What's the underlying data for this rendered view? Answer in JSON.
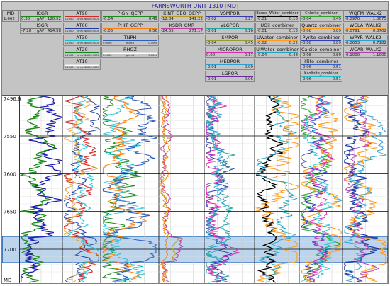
{
  "window": {
    "title": "FARNSWORTH UNIT 1310 [MD]"
  },
  "depth_track": {
    "label_top": "MD",
    "value_top": "1:662",
    "label_bottom": "MD",
    "ticks": [
      "7496.6",
      "7550",
      "7600",
      "7650",
      "7700"
    ]
  },
  "header_cells": [
    {
      "label": "HCGR",
      "color": "#1b8a1b",
      "min": "0.30",
      "unit": "gAPI",
      "max": "120.52"
    },
    {
      "label": "HSGR",
      "color": "#7a7a7a",
      "min": "-7.28",
      "unit": "gAPI",
      "max": "414.58"
    },
    {
      "label": "AT90",
      "color": "#d62728",
      "min": "0.2000",
      "unit": "ohm.m",
      "max": "2,000.0000"
    },
    {
      "label": "AT60",
      "color": "#1f3ea8",
      "min": "0.2000",
      "unit": "ohm.m",
      "max": "2,000.0000"
    },
    {
      "label": "AT30",
      "color": "#17becf",
      "min": "0.2000",
      "unit": "ohm.m",
      "max": "2,000.0000"
    },
    {
      "label": "AT20",
      "color": "#0b8a1f",
      "min": "0.2000",
      "unit": "ohm.m",
      "max": "2,000.0000"
    },
    {
      "label": "AT10",
      "color": "#ffffff",
      "min": "0.2000",
      "unit": "ohm.m",
      "max": "2,000.0000"
    },
    {
      "label": "PIGN_QEPP",
      "color": "#1e8a1e",
      "min": "-0.04",
      "unit": "",
      "max": "0.49"
    },
    {
      "label": "PHIT_QEPP",
      "color": "#ff7f0e",
      "min": "-0.05",
      "unit": "",
      "max": "0.56"
    },
    {
      "label": "TNPH",
      "color": "#2d5fc0",
      "min": "0.0000",
      "unit": "ft3/ft3",
      "max": "0.4000"
    },
    {
      "label": "RHOZ",
      "color": "#ffffff",
      "min": "0.0000",
      "unit": "g/cm3",
      "max": "5.0000"
    },
    {
      "label": "KINT_GEO_QEPP",
      "color": "#b59a2a",
      "min": "-12.84",
      "unit": "",
      "max": "141.22"
    },
    {
      "label": "KSDR_CMR",
      "color": "#c03fa0",
      "min": "-24.65",
      "unit": "",
      "max": "271.17"
    },
    {
      "label": "VSMPOR",
      "color": "#3a3ab0",
      "min": "-0.02",
      "unit": "",
      "max": "0.27"
    },
    {
      "label": "VLGPOR",
      "color": "#1fa3a3",
      "min": "-0.01",
      "unit": "",
      "max": "0.16"
    },
    {
      "label": "SMPOR",
      "color": "#9a9a2a",
      "min": "-0.04",
      "unit": "",
      "max": "0.45"
    },
    {
      "label": "MICROPOR",
      "color": "#d62cb0",
      "min": "0.00",
      "unit": "",
      "max": "0.17"
    },
    {
      "label": "MEDPOR",
      "color": "#2ca0d0",
      "min": "-0.01",
      "unit": "",
      "max": "0.09"
    },
    {
      "label": "LGPOR",
      "color": "#6a2ca0",
      "min": "-0.01",
      "unit": "",
      "max": "0.06"
    },
    {
      "label": "Bound_Water_combiner",
      "color": "#000000",
      "min": "-0.01",
      "unit": "",
      "max": "0.16"
    },
    {
      "label": "UOil_combiner",
      "color": "#7f7f7f",
      "min": "-0.01",
      "unit": "",
      "max": "0.15"
    },
    {
      "label": "UWater_combiner",
      "color": "#ff9a1a",
      "min": "-0.02",
      "unit": "",
      "max": "0.22"
    },
    {
      "label": "UIWater_combiner",
      "color": "#1fa3c0",
      "min": "-0.04",
      "unit": "",
      "max": "0.48"
    },
    {
      "label": "Chlorite_combiner",
      "color": "#2ca02c",
      "min": "-0.04",
      "unit": "",
      "max": "0.49"
    },
    {
      "label": "Quartz_combiner",
      "color": "#ff9a1a",
      "min": "-0.08",
      "unit": "",
      "max": "0.89"
    },
    {
      "label": "Pyrite_combiner",
      "color": "#2d3fc0",
      "min": "-0.08",
      "unit": "",
      "max": "0.89"
    },
    {
      "label": "Calcite_combiner",
      "color": "#7f7f7f",
      "min": "-0.08",
      "unit": "",
      "max": "0.89"
    },
    {
      "label": "Illite_combiner",
      "color": "#3a5fd0",
      "min": "-0.06",
      "unit": "",
      "max": "0.51"
    },
    {
      "label": "Kaolinite_combiner",
      "color": "#17becf",
      "min": "-0.06",
      "unit": "",
      "max": "0.51"
    },
    {
      "label": "WQFM_WALK2",
      "color": "#1f3ea8",
      "min": "-0.0970",
      "unit": "",
      "max": "1.0675"
    },
    {
      "label": "WCLA_WALK2",
      "color": "#ff9a1a",
      "min": "-0.0791",
      "unit": "",
      "max": "0.8702"
    },
    {
      "label": "WPYR_WALK2",
      "color": "#2ca0d0",
      "min": "-0.0653",
      "unit": "",
      "max": "0.7182"
    },
    {
      "label": "WCAR_WALK2",
      "color": "#b03fb0",
      "min": "-0.1000",
      "unit": "",
      "max": "1.1000"
    }
  ],
  "zone": {
    "top_depth": 7683,
    "bottom_depth": 7718,
    "color": "#9fc3e6"
  }
}
